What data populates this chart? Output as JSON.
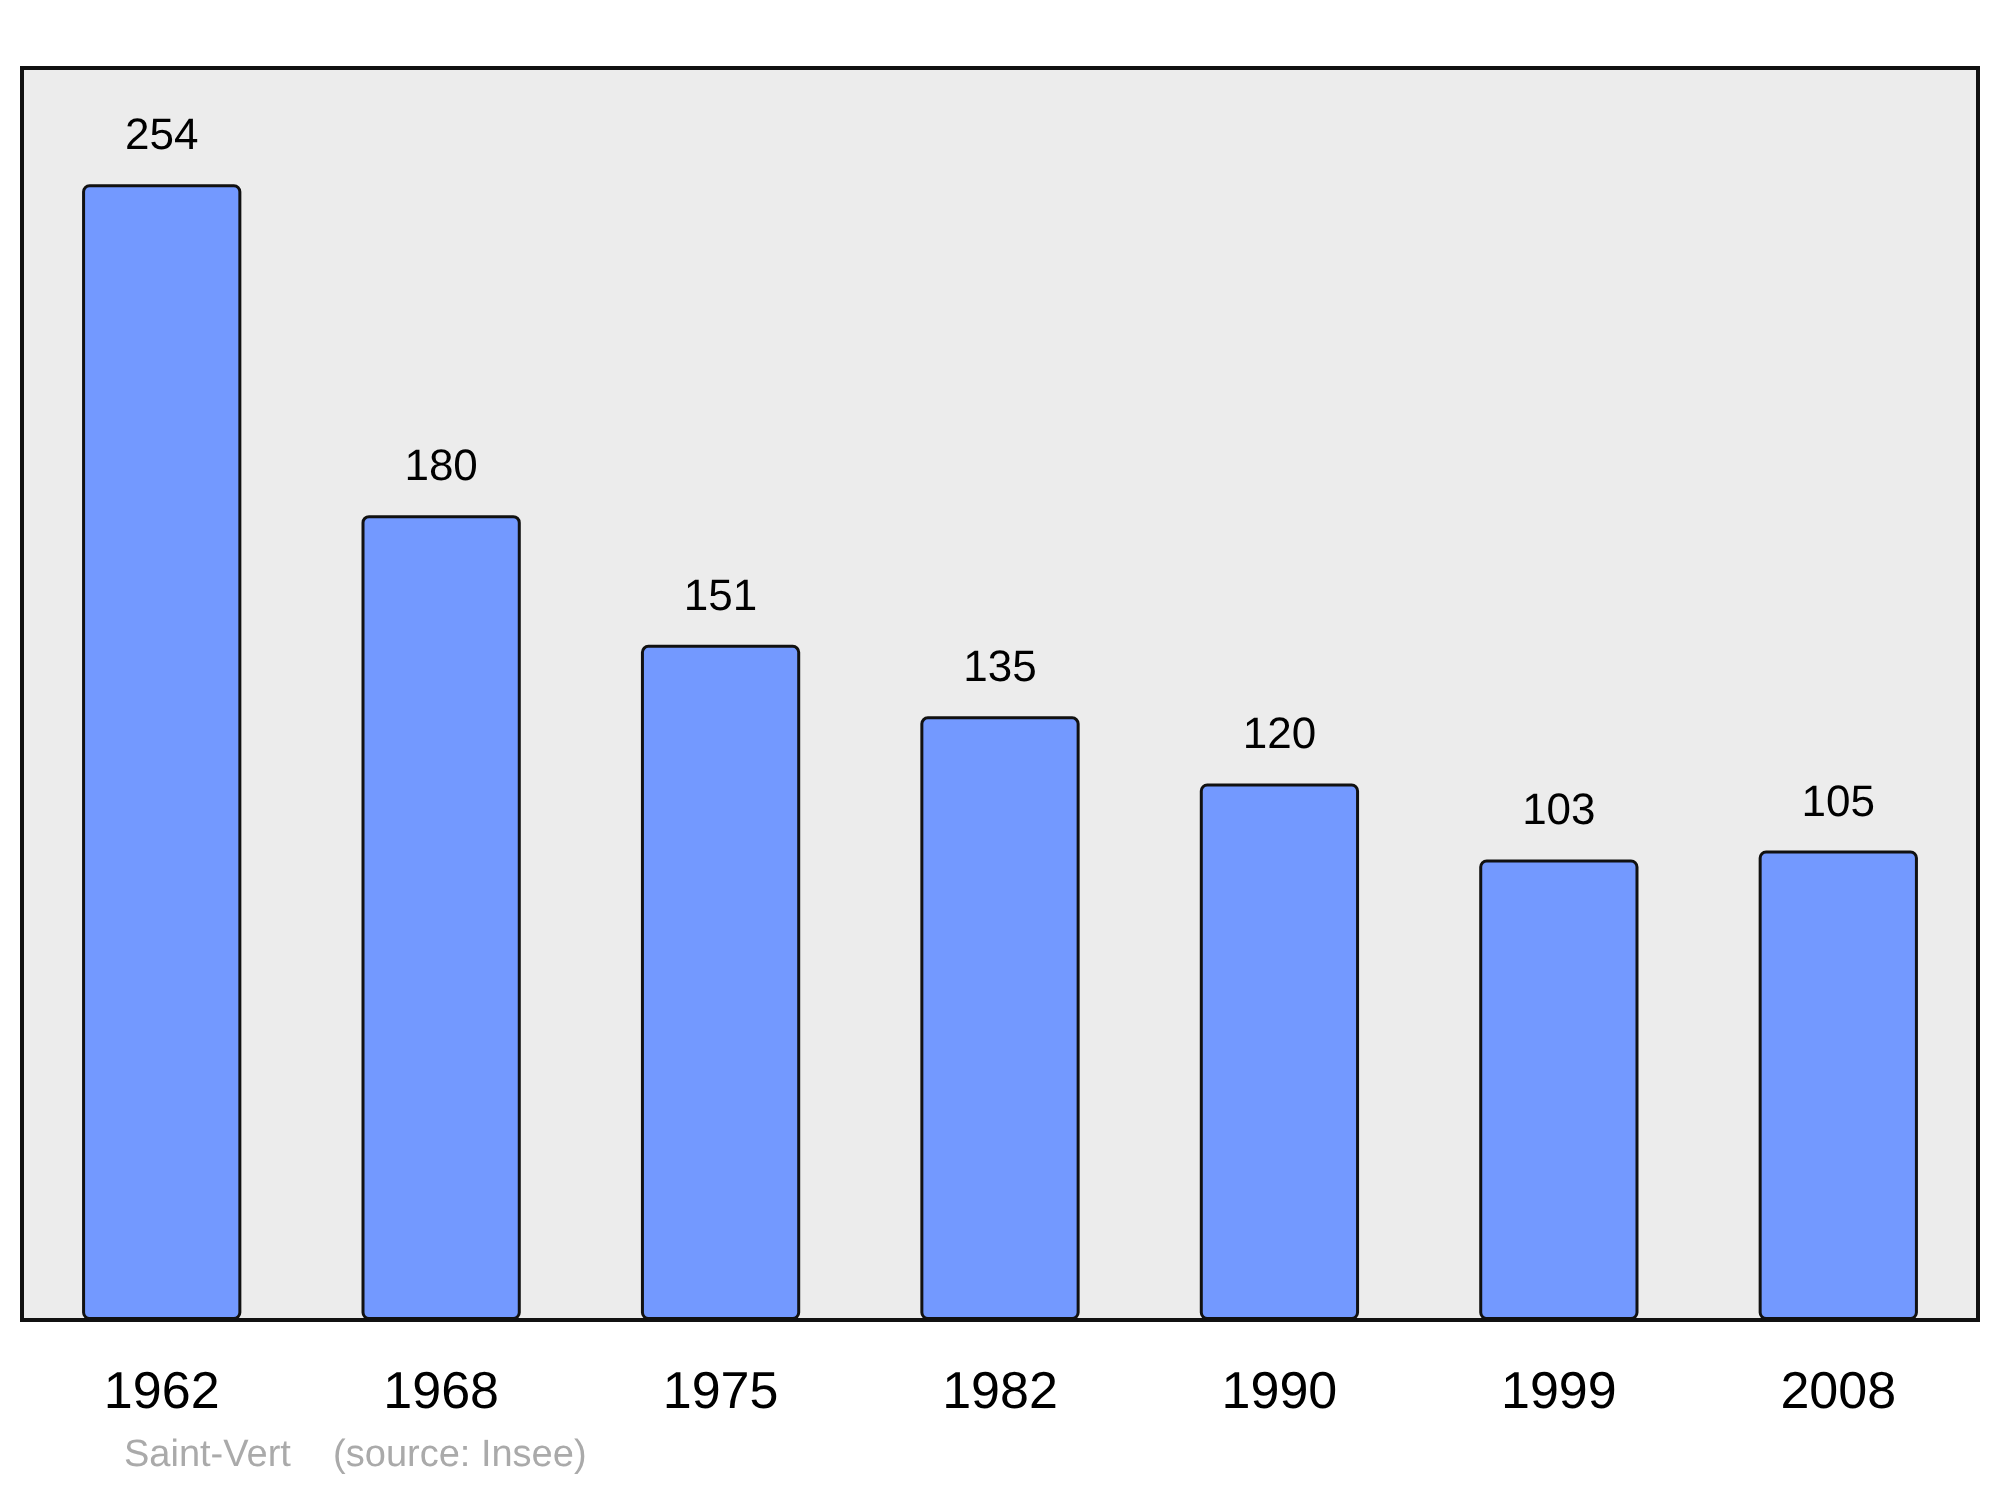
{
  "chart_data": {
    "type": "bar",
    "categories": [
      "1962",
      "1968",
      "1975",
      "1982",
      "1990",
      "1999",
      "2008"
    ],
    "values": [
      254,
      180,
      151,
      135,
      120,
      103,
      105
    ],
    "color": "#7399ff",
    "data_labels": true,
    "ylim": [
      0,
      280
    ],
    "annotations": [
      "Saint-Vert    (source: Insee)"
    ]
  }
}
